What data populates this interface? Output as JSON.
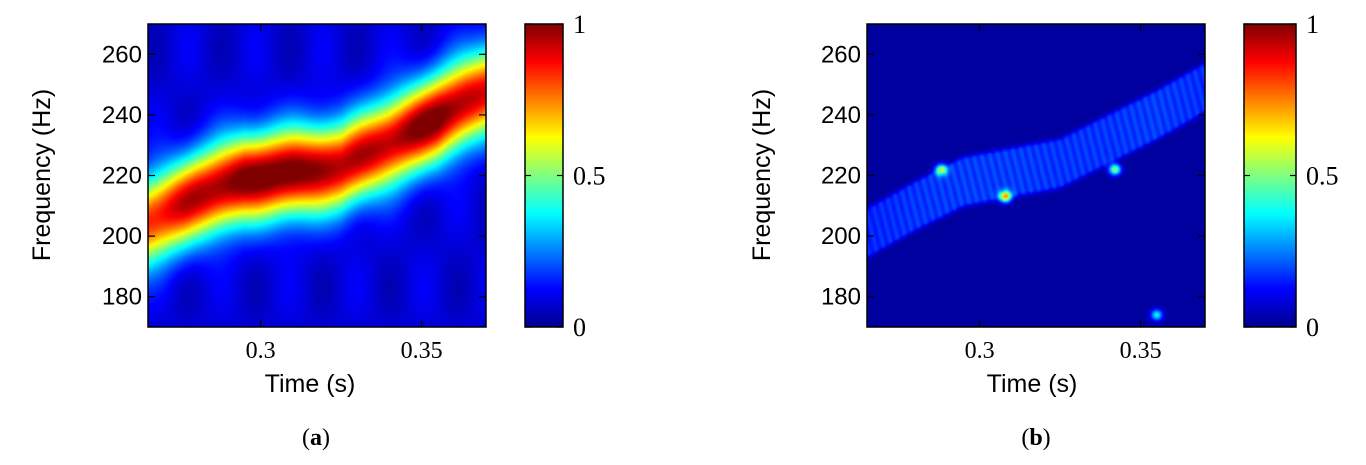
{
  "chart_data": [
    {
      "type": "heatmap",
      "panel_label": "(a)",
      "panel_letter": "a",
      "xlabel": "Time (s)",
      "ylabel": "Frequency (Hz)",
      "xlim": [
        0.265,
        0.37
      ],
      "ylim": [
        170,
        270
      ],
      "xticks": [
        0.3,
        0.35
      ],
      "xtick_labels": [
        "0.3",
        "0.35"
      ],
      "yticks": [
        180,
        200,
        220,
        240,
        260
      ],
      "ytick_labels": [
        "180",
        "200",
        "220",
        "240",
        "260"
      ],
      "colorbar": {
        "range": [
          0,
          1
        ],
        "ticks": [
          0,
          0.5,
          1
        ],
        "tick_labels": [
          "0",
          "0.5",
          "1"
        ]
      },
      "ridge": {
        "x": [
          0.265,
          0.28,
          0.295,
          0.31,
          0.325,
          0.34,
          0.355,
          0.37
        ],
        "freq": [
          205,
          213,
          219,
          221,
          223,
          231,
          239,
          248
        ],
        "peak": [
          0.78,
          0.86,
          0.95,
          0.96,
          0.86,
          0.88,
          0.95,
          0.82
        ],
        "width_hz": 10
      },
      "grid": false
    },
    {
      "type": "heatmap",
      "panel_label": "(b)",
      "panel_letter": "b",
      "xlabel": "Time (s)",
      "ylabel": "Frequency (Hz)",
      "xlim": [
        0.265,
        0.37
      ],
      "ylim": [
        170,
        270
      ],
      "xticks": [
        0.3,
        0.35
      ],
      "xtick_labels": [
        "0.3",
        "0.35"
      ],
      "yticks": [
        180,
        200,
        220,
        240,
        260
      ],
      "ytick_labels": [
        "180",
        "200",
        "220",
        "240",
        "260"
      ],
      "colorbar": {
        "range": [
          0,
          1
        ],
        "ticks": [
          0,
          0.5,
          1
        ],
        "tick_labels": [
          "0",
          "0.5",
          "1"
        ]
      },
      "ridge": {
        "x": [
          0.265,
          0.28,
          0.295,
          0.31,
          0.325,
          0.34,
          0.355,
          0.37
        ],
        "freq": [
          201,
          210,
          218,
          221,
          224,
          232,
          240,
          249
        ],
        "peak": [
          0.15,
          0.17,
          0.18,
          0.18,
          0.17,
          0.17,
          0.18,
          0.16
        ],
        "width_hz": 7
      },
      "spots": [
        {
          "x": 0.288,
          "freq": 222,
          "value": 0.45
        },
        {
          "x": 0.308,
          "freq": 213,
          "value": 0.6
        },
        {
          "x": 0.342,
          "freq": 222,
          "value": 0.5
        },
        {
          "x": 0.355,
          "freq": 174,
          "value": 0.35
        }
      ],
      "grid": false
    }
  ]
}
